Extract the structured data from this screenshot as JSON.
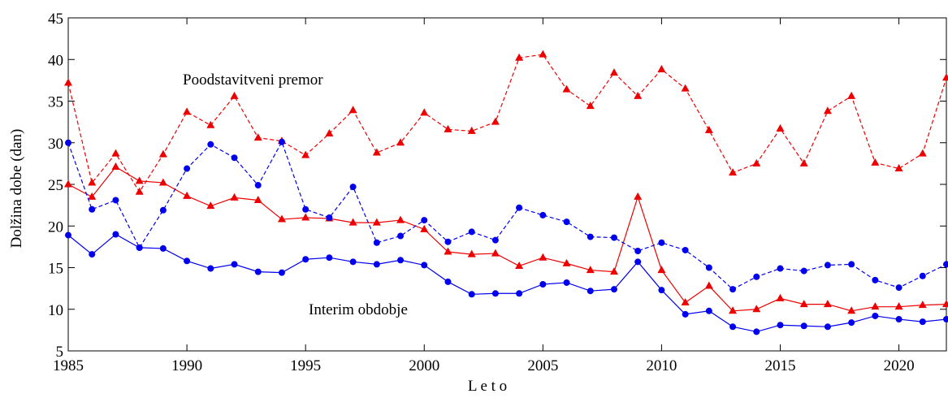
{
  "chart_data": {
    "type": "line",
    "x_label": "L e t o",
    "y_label": "Dolžina dobe (dan)",
    "x": [
      1985,
      1986,
      1987,
      1988,
      1989,
      1990,
      1991,
      1992,
      1993,
      1994,
      1995,
      1996,
      1997,
      1998,
      1999,
      2000,
      2001,
      2002,
      2003,
      2004,
      2005,
      2006,
      2007,
      2008,
      2009,
      2010,
      2011,
      2012,
      2013,
      2014,
      2015,
      2016,
      2017,
      2018,
      2019,
      2020,
      2021,
      2022
    ],
    "xlim": [
      1985,
      2022
    ],
    "xticks": [
      1985,
      1990,
      1995,
      2000,
      2005,
      2010,
      2015,
      2020
    ],
    "ylim": [
      5,
      45
    ],
    "yticks": [
      5,
      10,
      15,
      20,
      25,
      30,
      35,
      40,
      45
    ],
    "annotations": [
      {
        "text": "Poodstavitveni premor",
        "color": "#ee0000"
      },
      {
        "text": "Interim obdobje",
        "color": "#0000ee"
      }
    ],
    "series": [
      {
        "color": "#ee0000",
        "dashed": true,
        "marker": "triangle",
        "values": [
          37.2,
          25.2,
          28.7,
          24.1,
          28.6,
          33.7,
          32.1,
          35.6,
          30.6,
          30.2,
          28.5,
          31.1,
          33.9,
          28.8,
          30.0,
          33.6,
          31.6,
          31.4,
          32.5,
          40.2,
          40.6,
          36.4,
          34.4,
          38.4,
          35.6,
          38.8,
          36.5,
          31.5,
          26.4,
          27.5,
          31.7,
          27.5,
          33.8,
          35.6,
          27.6,
          26.9,
          28.7,
          37.8
        ]
      },
      {
        "color": "#ee0000",
        "dashed": false,
        "marker": "triangle",
        "values": [
          25.0,
          23.5,
          27.1,
          25.4,
          25.2,
          23.6,
          22.4,
          23.4,
          23.1,
          20.8,
          21.0,
          20.9,
          20.4,
          20.4,
          20.7,
          19.6,
          16.9,
          16.6,
          16.7,
          15.2,
          16.2,
          15.5,
          14.7,
          14.5,
          23.5,
          14.7,
          10.8,
          12.8,
          9.8,
          10.0,
          11.3,
          10.6,
          10.6,
          9.8,
          10.3,
          10.3,
          10.5,
          10.6
        ]
      },
      {
        "color": "#0000ee",
        "dashed": true,
        "marker": "circle",
        "values": [
          30.0,
          22.0,
          23.1,
          17.4,
          21.9,
          26.9,
          29.8,
          28.2,
          24.9,
          30.1,
          22.0,
          21.0,
          24.7,
          18.0,
          18.8,
          20.7,
          18.1,
          19.3,
          18.3,
          22.2,
          21.3,
          20.5,
          18.7,
          18.6,
          17.0,
          18.0,
          17.1,
          15.0,
          12.4,
          13.9,
          14.9,
          14.6,
          15.3,
          15.4,
          13.5,
          12.6,
          14.0,
          15.4
        ]
      },
      {
        "color": "#0000ee",
        "dashed": false,
        "marker": "circle",
        "values": [
          18.9,
          16.6,
          19.0,
          17.4,
          17.3,
          15.8,
          14.9,
          15.4,
          14.5,
          14.4,
          16.0,
          16.2,
          15.7,
          15.4,
          15.9,
          15.3,
          13.3,
          11.8,
          11.9,
          11.9,
          13.0,
          13.2,
          12.2,
          12.4,
          15.7,
          12.3,
          9.4,
          9.8,
          7.9,
          7.3,
          8.1,
          8.0,
          7.9,
          8.4,
          9.2,
          8.8,
          8.5,
          8.8
        ]
      }
    ]
  }
}
